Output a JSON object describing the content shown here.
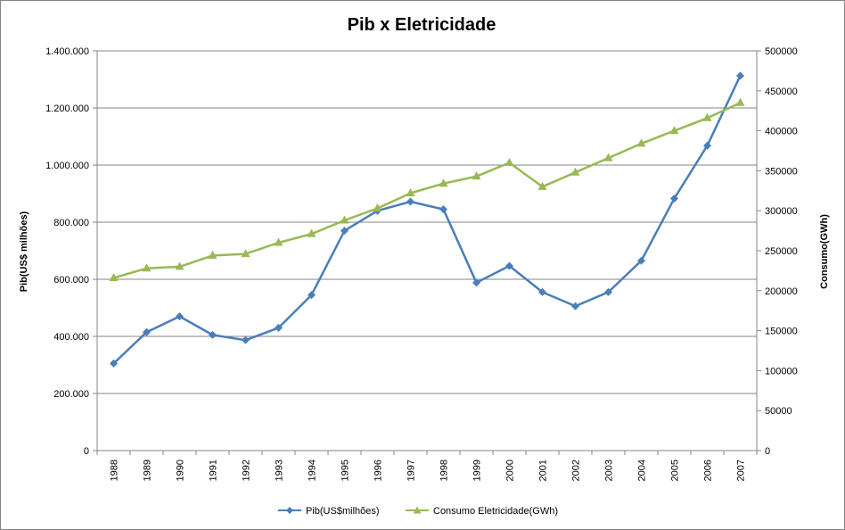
{
  "chart_data": {
    "type": "line",
    "title": "Pib x Eletricidade",
    "ylabel": "Pib(US$ milhões)",
    "y2label": "Consumo(GWh)",
    "xlabel": "",
    "categories": [
      "1988",
      "1989",
      "1990",
      "1991",
      "1992",
      "1993",
      "1994",
      "1995",
      "1996",
      "1997",
      "1998",
      "1999",
      "2000",
      "2001",
      "2002",
      "2003",
      "2004",
      "2005",
      "2006",
      "2007"
    ],
    "ylim": [
      0,
      1400000
    ],
    "y_ticks": [
      0,
      200000,
      400000,
      600000,
      800000,
      1000000,
      1200000,
      1400000
    ],
    "y_tick_labels": [
      "0",
      "200.000",
      "400.000",
      "600.000",
      "800.000",
      "1.000.000",
      "1.200.000",
      "1.400.000"
    ],
    "y2lim": [
      0,
      500000
    ],
    "y2_ticks": [
      0,
      50000,
      100000,
      150000,
      200000,
      250000,
      300000,
      350000,
      400000,
      450000,
      500000
    ],
    "y2_tick_labels": [
      "0",
      "50000",
      "100000",
      "150000",
      "200000",
      "250000",
      "300000",
      "350000",
      "400000",
      "450000",
      "500000"
    ],
    "grid": true,
    "legend_position": "bottom",
    "series": [
      {
        "name": "Pib(US$milhões)",
        "axis": "left",
        "marker": "diamond",
        "color": "#4a7ebb",
        "values": [
          305000,
          415000,
          470000,
          405000,
          387000,
          430000,
          545000,
          770000,
          840000,
          872000,
          845000,
          588000,
          647000,
          555000,
          506000,
          555000,
          665000,
          883000,
          1068000,
          1313000
        ]
      },
      {
        "name": "Consumo Eletricidade(GWh)",
        "axis": "right",
        "marker": "triangle",
        "color": "#98b954",
        "values": [
          216000,
          228000,
          230000,
          244000,
          246000,
          260000,
          271000,
          288000,
          303000,
          322000,
          334000,
          343000,
          360000,
          330000,
          348000,
          366000,
          384000,
          400000,
          416000,
          435000
        ]
      }
    ]
  }
}
